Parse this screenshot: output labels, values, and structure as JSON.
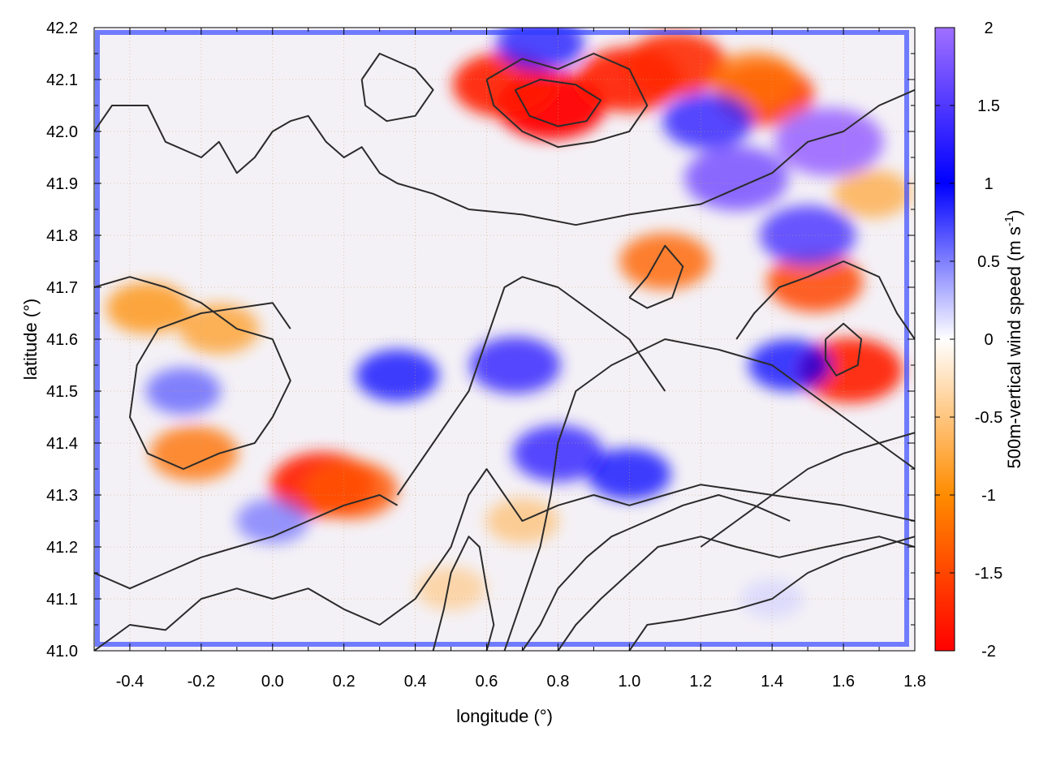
{
  "chart_data": {
    "type": "heatmap",
    "title": "",
    "xlabel": "longitude (°)",
    "ylabel": "latitude (°)",
    "xlim": [
      -0.5,
      1.8
    ],
    "ylim": [
      41.0,
      42.2
    ],
    "x_ticks": [
      "-0.4",
      "-0.2",
      "0.0",
      "0.2",
      "0.4",
      "0.6",
      "0.8",
      "1.0",
      "1.2",
      "1.4",
      "1.6",
      "1.8"
    ],
    "x_tick_values": [
      -0.4,
      -0.2,
      0.0,
      0.2,
      0.4,
      0.6,
      0.8,
      1.0,
      1.2,
      1.4,
      1.6,
      1.8
    ],
    "y_ticks": [
      "41.0",
      "41.1",
      "41.2",
      "41.3",
      "41.4",
      "41.5",
      "41.6",
      "41.7",
      "41.8",
      "41.9",
      "42.0",
      "42.1",
      "42.2"
    ],
    "y_tick_values": [
      41.0,
      41.1,
      41.2,
      41.3,
      41.4,
      41.5,
      41.6,
      41.7,
      41.8,
      41.9,
      42.0,
      42.1,
      42.2
    ],
    "grid": true,
    "colorbar": {
      "label_main": "500m-vertical wind speed (m s",
      "label_sup": "-1",
      "label_close": ")",
      "range": [
        -2,
        2
      ],
      "ticks": [
        "-2",
        "-1.5",
        "-1",
        "-0.5",
        "0",
        "0.5",
        "1",
        "1.5",
        "2"
      ],
      "tick_values": [
        -2,
        -1.5,
        -1,
        -0.5,
        0,
        0.5,
        1,
        1.5,
        2
      ],
      "colors": [
        "#ff0000",
        "#ff8c00",
        "#ffffff",
        "#0000ff",
        "#a070ff"
      ]
    },
    "hotspots": [
      {
        "lon": 0.78,
        "lat": 42.05,
        "value": -2.0
      },
      {
        "lon": 0.65,
        "lat": 42.09,
        "value": -1.8
      },
      {
        "lon": 1.0,
        "lat": 42.1,
        "value": -1.8
      },
      {
        "lon": 1.13,
        "lat": 42.13,
        "value": -1.7
      },
      {
        "lon": 1.38,
        "lat": 42.07,
        "value": -1.6
      },
      {
        "lon": 1.52,
        "lat": 41.71,
        "value": -1.5
      },
      {
        "lon": 1.1,
        "lat": 41.75,
        "value": -1.3
      },
      {
        "lon": 1.62,
        "lat": 41.54,
        "value": -1.8
      },
      {
        "lon": 0.14,
        "lat": 41.32,
        "value": -1.8
      },
      {
        "lon": 0.22,
        "lat": 41.31,
        "value": -1.4
      },
      {
        "lon": -0.22,
        "lat": 41.38,
        "value": -1.2
      },
      {
        "lon": -0.35,
        "lat": 41.66,
        "value": -1.0
      },
      {
        "lon": -0.15,
        "lat": 41.62,
        "value": -0.9
      },
      {
        "lon": 1.68,
        "lat": 41.88,
        "value": -0.8
      },
      {
        "lon": 0.7,
        "lat": 41.25,
        "value": -0.6
      },
      {
        "lon": 0.5,
        "lat": 41.12,
        "value": -0.5
      },
      {
        "lon": 1.35,
        "lat": 42.1,
        "value": -1.2
      },
      {
        "lon": 1.56,
        "lat": 41.98,
        "value": 2.0
      },
      {
        "lon": 1.3,
        "lat": 41.91,
        "value": 1.8
      },
      {
        "lon": 1.5,
        "lat": 41.8,
        "value": 1.5
      },
      {
        "lon": 0.68,
        "lat": 41.55,
        "value": 1.3
      },
      {
        "lon": 0.8,
        "lat": 41.38,
        "value": 1.3
      },
      {
        "lon": 0.35,
        "lat": 41.53,
        "value": 1.0
      },
      {
        "lon": 1.0,
        "lat": 41.34,
        "value": 1.0
      },
      {
        "lon": 1.22,
        "lat": 42.02,
        "value": 1.3
      },
      {
        "lon": 0.75,
        "lat": 42.17,
        "value": 1.2
      },
      {
        "lon": 1.45,
        "lat": 41.55,
        "value": 1.0
      },
      {
        "lon": 0.0,
        "lat": 41.25,
        "value": 0.6
      },
      {
        "lon": -0.25,
        "lat": 41.5,
        "value": 0.7
      },
      {
        "lon": 1.4,
        "lat": 41.1,
        "value": 0.2
      }
    ],
    "contours": [
      [
        [
          -0.5,
          42.0
        ],
        [
          -0.45,
          42.05
        ],
        [
          -0.35,
          42.05
        ],
        [
          -0.3,
          41.98
        ],
        [
          -0.2,
          41.95
        ],
        [
          -0.15,
          41.98
        ],
        [
          -0.1,
          41.92
        ],
        [
          -0.05,
          41.95
        ],
        [
          0.0,
          42.0
        ],
        [
          0.05,
          42.02
        ],
        [
          0.1,
          42.03
        ],
        [
          0.15,
          41.98
        ],
        [
          0.2,
          41.95
        ],
        [
          0.25,
          41.97
        ],
        [
          0.3,
          41.92
        ],
        [
          0.35,
          41.9
        ],
        [
          0.45,
          41.88
        ],
        [
          0.55,
          41.85
        ],
        [
          0.7,
          41.84
        ],
        [
          0.85,
          41.82
        ],
        [
          1.0,
          41.84
        ],
        [
          1.2,
          41.86
        ],
        [
          1.4,
          41.92
        ],
        [
          1.5,
          41.98
        ],
        [
          1.6,
          42.0
        ],
        [
          1.7,
          42.05
        ],
        [
          1.8,
          42.08
        ]
      ],
      [
        [
          -0.5,
          41.0
        ],
        [
          -0.4,
          41.05
        ],
        [
          -0.3,
          41.04
        ],
        [
          -0.2,
          41.1
        ],
        [
          -0.1,
          41.12
        ],
        [
          0.0,
          41.1
        ],
        [
          0.1,
          41.12
        ],
        [
          0.2,
          41.08
        ],
        [
          0.3,
          41.05
        ],
        [
          0.4,
          41.1
        ],
        [
          0.5,
          41.2
        ],
        [
          0.55,
          41.3
        ],
        [
          0.6,
          41.35
        ],
        [
          0.65,
          41.3
        ],
        [
          0.7,
          41.25
        ],
        [
          0.8,
          41.28
        ],
        [
          0.9,
          41.3
        ],
        [
          1.0,
          41.28
        ],
        [
          1.1,
          41.3
        ],
        [
          1.2,
          41.32
        ],
        [
          1.4,
          41.3
        ],
        [
          1.6,
          41.28
        ],
        [
          1.8,
          41.25
        ]
      ],
      [
        [
          -0.5,
          41.7
        ],
        [
          -0.4,
          41.72
        ],
        [
          -0.3,
          41.7
        ],
        [
          -0.2,
          41.67
        ],
        [
          -0.1,
          41.62
        ],
        [
          0.0,
          41.6
        ],
        [
          0.05,
          41.52
        ],
        [
          0.0,
          41.45
        ],
        [
          -0.05,
          41.4
        ],
        [
          -0.15,
          41.38
        ],
        [
          -0.25,
          41.35
        ],
        [
          -0.35,
          41.38
        ],
        [
          -0.4,
          41.45
        ],
        [
          -0.38,
          41.55
        ],
        [
          -0.32,
          41.62
        ],
        [
          -0.2,
          41.65
        ],
        [
          -0.1,
          41.66
        ],
        [
          0.0,
          41.67
        ],
        [
          0.05,
          41.62
        ]
      ],
      [
        [
          0.65,
          41.0
        ],
        [
          0.7,
          41.1
        ],
        [
          0.75,
          41.2
        ],
        [
          0.78,
          41.3
        ],
        [
          0.8,
          41.4
        ],
        [
          0.85,
          41.5
        ],
        [
          0.95,
          41.55
        ],
        [
          1.1,
          41.6
        ],
        [
          1.25,
          41.58
        ],
        [
          1.4,
          41.55
        ],
        [
          1.5,
          41.5
        ],
        [
          1.6,
          41.45
        ],
        [
          1.7,
          41.4
        ],
        [
          1.8,
          41.35
        ]
      ],
      [
        [
          0.35,
          41.3
        ],
        [
          0.4,
          41.35
        ],
        [
          0.45,
          41.4
        ],
        [
          0.5,
          41.45
        ],
        [
          0.55,
          41.5
        ],
        [
          0.6,
          41.6
        ],
        [
          0.65,
          41.7
        ],
        [
          0.7,
          41.72
        ],
        [
          0.8,
          41.7
        ],
        [
          0.9,
          41.65
        ],
        [
          1.0,
          41.6
        ],
        [
          1.05,
          41.55
        ],
        [
          1.1,
          41.5
        ]
      ],
      [
        [
          1.0,
          41.68
        ],
        [
          1.05,
          41.72
        ],
        [
          1.1,
          41.78
        ],
        [
          1.15,
          41.74
        ],
        [
          1.12,
          41.68
        ],
        [
          1.05,
          41.66
        ],
        [
          1.0,
          41.68
        ]
      ],
      [
        [
          1.55,
          41.6
        ],
        [
          1.6,
          41.63
        ],
        [
          1.65,
          41.6
        ],
        [
          1.64,
          41.55
        ],
        [
          1.58,
          41.53
        ],
        [
          1.55,
          41.56
        ],
        [
          1.55,
          41.6
        ]
      ],
      [
        [
          0.6,
          42.1
        ],
        [
          0.7,
          42.14
        ],
        [
          0.8,
          42.12
        ],
        [
          0.9,
          42.15
        ],
        [
          1.0,
          42.12
        ],
        [
          1.05,
          42.05
        ],
        [
          1.0,
          42.0
        ],
        [
          0.9,
          41.98
        ],
        [
          0.8,
          41.97
        ],
        [
          0.7,
          42.0
        ],
        [
          0.62,
          42.05
        ],
        [
          0.6,
          42.1
        ]
      ],
      [
        [
          0.68,
          42.08
        ],
        [
          0.75,
          42.1
        ],
        [
          0.85,
          42.09
        ],
        [
          0.92,
          42.06
        ],
        [
          0.88,
          42.02
        ],
        [
          0.8,
          42.01
        ],
        [
          0.72,
          42.03
        ],
        [
          0.68,
          42.08
        ]
      ],
      [
        [
          0.25,
          42.1
        ],
        [
          0.3,
          42.15
        ],
        [
          0.4,
          42.12
        ],
        [
          0.45,
          42.08
        ],
        [
          0.4,
          42.03
        ],
        [
          0.32,
          42.02
        ],
        [
          0.26,
          42.05
        ],
        [
          0.25,
          42.1
        ]
      ],
      [
        [
          0.7,
          41.0
        ],
        [
          0.75,
          41.05
        ],
        [
          0.8,
          41.12
        ],
        [
          0.88,
          41.18
        ],
        [
          0.95,
          41.22
        ],
        [
          1.05,
          41.25
        ],
        [
          1.15,
          41.28
        ],
        [
          1.25,
          41.3
        ],
        [
          1.35,
          41.28
        ],
        [
          1.45,
          41.25
        ]
      ],
      [
        [
          0.8,
          41.0
        ],
        [
          0.85,
          41.05
        ],
        [
          0.92,
          41.1
        ],
        [
          1.0,
          41.15
        ],
        [
          1.08,
          41.2
        ],
        [
          1.2,
          41.22
        ],
        [
          1.3,
          41.2
        ],
        [
          1.42,
          41.18
        ],
        [
          1.55,
          41.2
        ],
        [
          1.7,
          41.22
        ],
        [
          1.8,
          41.2
        ]
      ],
      [
        [
          1.0,
          41.0
        ],
        [
          1.05,
          41.05
        ],
        [
          1.15,
          41.06
        ],
        [
          1.3,
          41.08
        ],
        [
          1.4,
          41.1
        ],
        [
          1.5,
          41.15
        ],
        [
          1.6,
          41.18
        ],
        [
          1.7,
          41.2
        ],
        [
          1.8,
          41.22
        ]
      ],
      [
        [
          -0.5,
          41.15
        ],
        [
          -0.4,
          41.12
        ],
        [
          -0.3,
          41.15
        ],
        [
          -0.2,
          41.18
        ],
        [
          -0.1,
          41.2
        ],
        [
          0.0,
          41.22
        ],
        [
          0.1,
          41.25
        ],
        [
          0.2,
          41.28
        ],
        [
          0.3,
          41.3
        ],
        [
          0.35,
          41.28
        ]
      ],
      [
        [
          0.45,
          41.0
        ],
        [
          0.48,
          41.08
        ],
        [
          0.5,
          41.15
        ],
        [
          0.55,
          41.22
        ],
        [
          0.58,
          41.2
        ],
        [
          0.6,
          41.12
        ],
        [
          0.62,
          41.05
        ],
        [
          0.6,
          41.0
        ]
      ],
      [
        [
          1.3,
          41.6
        ],
        [
          1.35,
          41.65
        ],
        [
          1.42,
          41.7
        ],
        [
          1.5,
          41.72
        ],
        [
          1.6,
          41.75
        ],
        [
          1.7,
          41.72
        ],
        [
          1.75,
          41.65
        ],
        [
          1.8,
          41.6
        ]
      ],
      [
        [
          1.2,
          41.2
        ],
        [
          1.3,
          41.25
        ],
        [
          1.4,
          41.3
        ],
        [
          1.5,
          41.35
        ],
        [
          1.6,
          41.38
        ],
        [
          1.7,
          41.4
        ],
        [
          1.8,
          41.42
        ]
      ]
    ]
  }
}
